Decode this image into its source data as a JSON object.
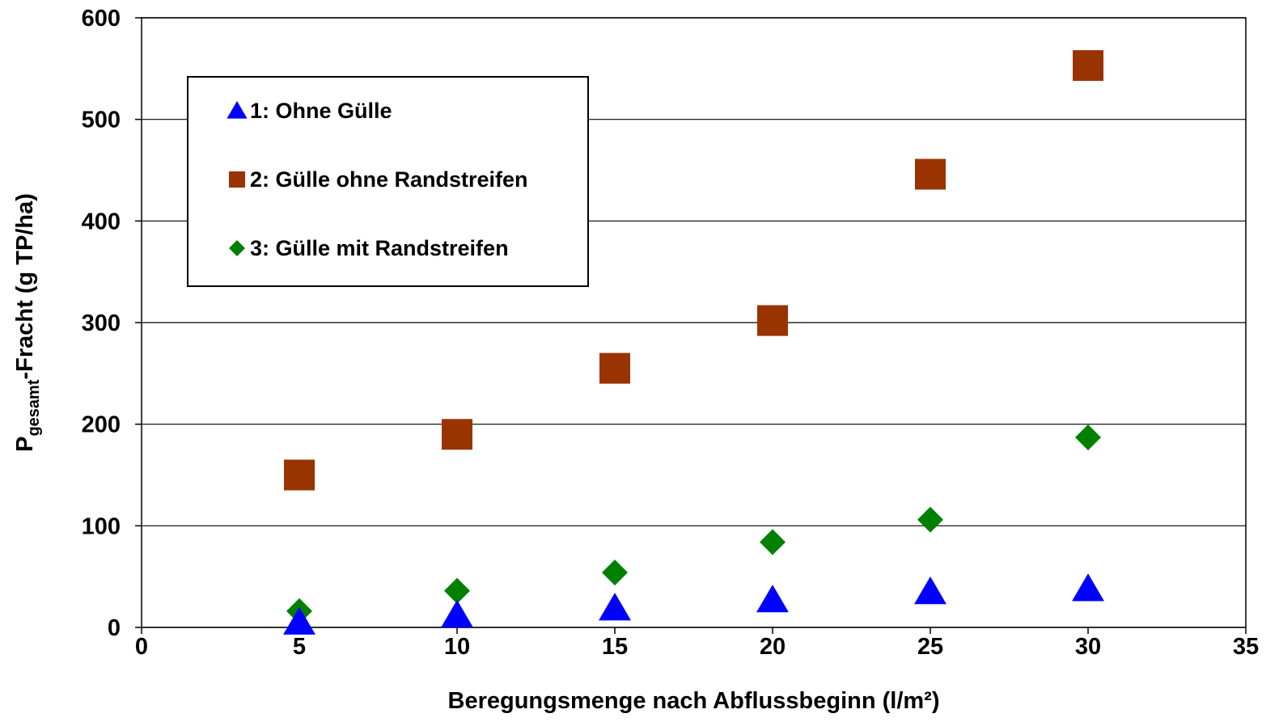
{
  "chart_data": {
    "type": "scatter",
    "title": "",
    "xlabel": "Beregungsmenge nach Abflussbeginn (l/m²)",
    "ylabel": {
      "base": "P",
      "subscript": "gesamt",
      "rest": "-Fracht (g TP/ha)"
    },
    "xlim": [
      0,
      35
    ],
    "ylim": [
      0,
      600
    ],
    "xticks": [
      0,
      5,
      10,
      15,
      20,
      25,
      30,
      35
    ],
    "yticks": [
      0,
      100,
      200,
      300,
      400,
      500,
      600
    ],
    "grid": "horizontal",
    "legend_position": "top-left",
    "series": [
      {
        "name": "1: Ohne Gülle",
        "marker": "triangle",
        "color": "#0000FF",
        "x": [
          5,
          10,
          15,
          20,
          25,
          30
        ],
        "y": [
          5,
          12,
          19,
          27,
          35,
          38
        ]
      },
      {
        "name": "2: Gülle ohne Randstreifen",
        "marker": "square",
        "color": "#993300",
        "x": [
          5,
          10,
          15,
          20,
          25,
          30
        ],
        "y": [
          150,
          190,
          255,
          302,
          446,
          553
        ]
      },
      {
        "name": "3: Gülle mit Randstreifen",
        "marker": "diamond",
        "color": "#008000",
        "x": [
          5,
          10,
          15,
          20,
          25,
          30
        ],
        "y": [
          16,
          36,
          54,
          84,
          106,
          187
        ]
      }
    ]
  }
}
